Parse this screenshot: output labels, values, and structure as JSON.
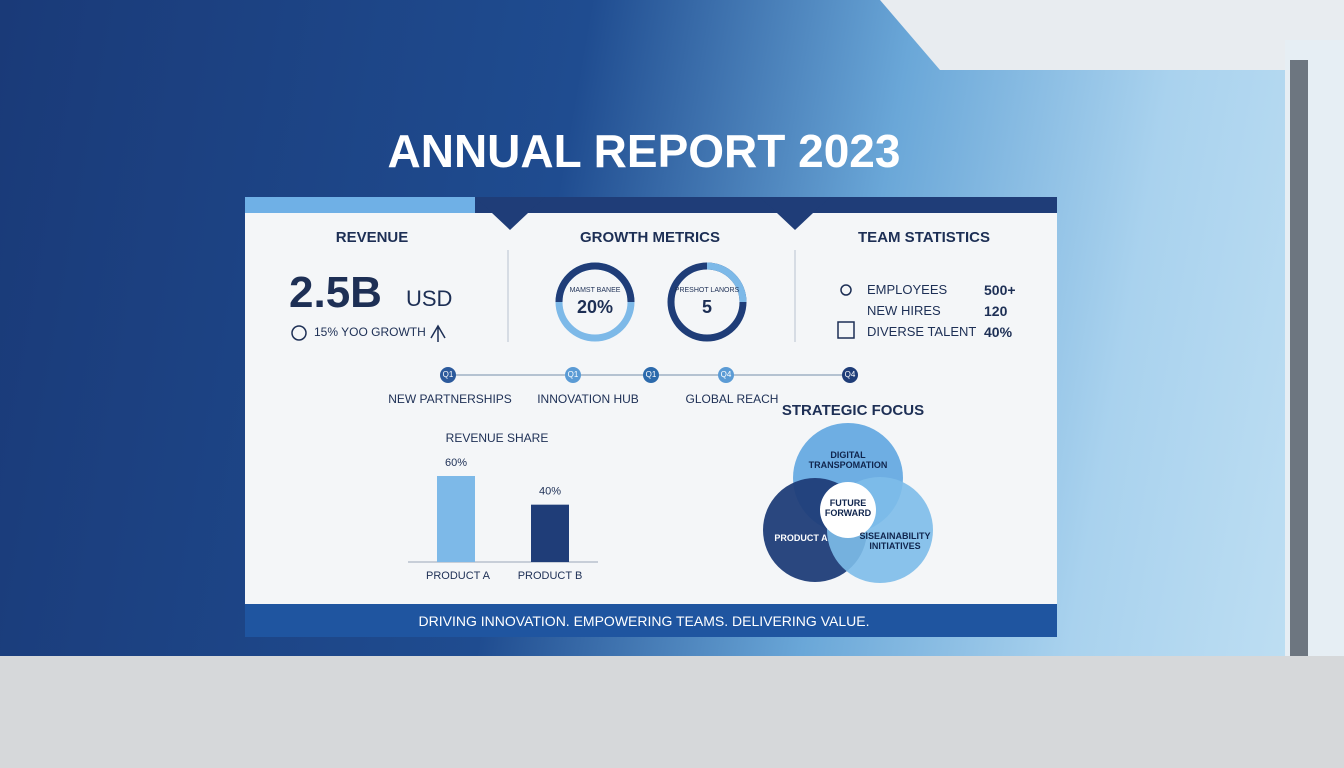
{
  "header": {
    "title": "ANNUAL REPORT 2023"
  },
  "revenue": {
    "heading": "REVENUE",
    "amount": "2.5B",
    "unit": "USD",
    "growth": "15% YOO GROWTH"
  },
  "growth_metrics": {
    "heading": "GROWTH METRICS",
    "gauges": [
      {
        "label": "MAMST BANEE",
        "value": "20%"
      },
      {
        "label": "PRESHOT LANORS",
        "value": "5"
      }
    ]
  },
  "team_statistics": {
    "heading": "TEAM STATISTICS",
    "rows": [
      [
        "EMPLOYEES",
        "500+"
      ],
      [
        "NEW HIRES",
        "120"
      ],
      [
        "DIVERSE TALENT",
        "40%"
      ]
    ]
  },
  "timeline": {
    "milestones": [
      {
        "marker": "Q1",
        "label": "NEW PARTNERSHIPS"
      },
      {
        "marker": "Q1",
        "label": "INNOVATION HUB"
      },
      {
        "marker": "Q1"
      },
      {
        "marker": "Q4",
        "label": "GLOBAL REACH"
      },
      {
        "marker": "Q4"
      }
    ]
  },
  "revenue_share": {
    "type": "bar",
    "title": "REVENUE SHARE",
    "categories": [
      "PRODUCT A",
      "PRODUCT B"
    ],
    "values": [
      60,
      40
    ],
    "value_labels": [
      "60%",
      "40%"
    ],
    "colors": [
      "#7db9e8",
      "#1f3d78"
    ]
  },
  "strategic_focus": {
    "title": "STRATEGIC FOCUS",
    "circles": [
      "DIGITAL TRANSPOMATION",
      "PRODUCT A",
      "SISEAINABILITY INITIATIVES"
    ],
    "center": "FUTURE FORWARD"
  },
  "footer": {
    "tagline": "DRIVING INNOVATION. EMPOWERING TEAMS. DELIVERING VALUE."
  }
}
